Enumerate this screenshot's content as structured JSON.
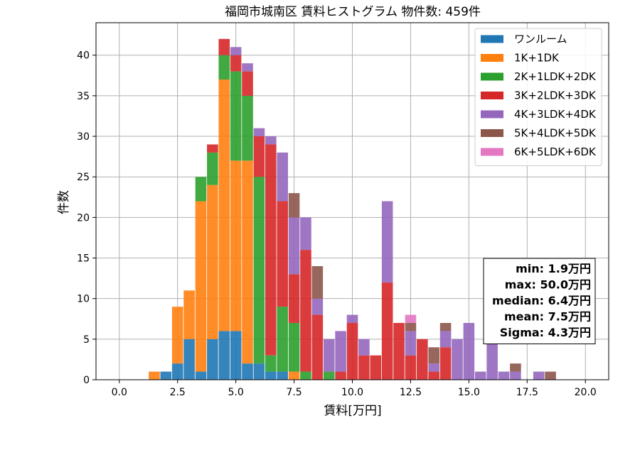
{
  "chart_data": {
    "type": "bar",
    "stacked": true,
    "title": "福岡市城南区 賃料ヒストグラム 物件数: 459件",
    "xlabel": "賃料[万円]",
    "ylabel": "件数",
    "xlim": [
      -1.0,
      21.0
    ],
    "ylim": [
      0,
      44
    ],
    "xticks": [
      0.0,
      2.5,
      5.0,
      7.5,
      10.0,
      12.5,
      15.0,
      17.5,
      20.0
    ],
    "xtick_labels": [
      "0.0",
      "2.5",
      "5.0",
      "7.5",
      "10.0",
      "12.5",
      "15.0",
      "17.5",
      "20.0"
    ],
    "yticks": [
      0,
      5,
      10,
      15,
      20,
      25,
      30,
      35,
      40
    ],
    "ytick_labels": [
      "0",
      "5",
      "10",
      "15",
      "20",
      "25",
      "30",
      "35",
      "40"
    ],
    "grid": true,
    "legend_position": "top-right",
    "bin_width": 0.5,
    "bins": [
      1.5,
      2.0,
      2.5,
      3.0,
      3.5,
      4.0,
      4.5,
      5.0,
      5.5,
      6.0,
      6.5,
      7.0,
      7.5,
      8.0,
      8.5,
      9.0,
      9.5,
      10.0,
      10.5,
      11.0,
      11.5,
      12.0,
      12.5,
      13.0,
      13.5,
      14.0,
      14.5,
      15.0,
      15.5,
      16.0,
      16.5,
      17.0,
      17.5,
      18.0,
      18.5
    ],
    "series": [
      {
        "name": "ワンルーム",
        "color": "#1f77b4",
        "values": [
          0,
          1,
          2,
          5,
          1,
          5,
          6,
          6,
          2,
          2,
          1,
          1,
          0,
          0,
          0,
          0,
          0,
          0,
          0,
          0,
          0,
          0,
          0,
          0,
          0,
          0,
          0,
          0,
          0,
          0,
          0,
          0,
          0,
          0,
          0
        ]
      },
      {
        "name": "1K+1DK",
        "color": "#ff7f0e",
        "values": [
          1,
          0,
          7,
          6,
          21,
          19,
          31,
          21,
          25,
          0,
          0,
          0,
          1,
          0,
          0,
          0,
          0,
          0,
          0,
          0,
          0,
          0,
          0,
          0,
          0,
          0,
          0,
          0,
          0,
          0,
          0,
          0,
          0,
          0,
          0
        ]
      },
      {
        "name": "2K+1LDK+2DK",
        "color": "#2ca02c",
        "values": [
          0,
          0,
          0,
          0,
          3,
          4,
          3,
          11,
          8,
          23,
          2,
          8,
          6,
          1,
          0,
          1,
          0,
          0,
          0,
          0,
          0,
          0,
          0,
          0,
          0,
          0,
          0,
          0,
          0,
          0,
          0,
          0,
          0,
          0,
          0
        ]
      },
      {
        "name": "3K+2LDK+3DK",
        "color": "#d62728",
        "values": [
          0,
          0,
          0,
          0,
          0,
          1,
          2,
          2,
          3,
          5,
          26,
          13,
          6,
          15,
          8,
          0,
          1,
          7,
          3,
          3,
          12,
          7,
          3,
          5,
          1,
          4,
          0,
          0,
          0,
          0,
          0,
          0,
          0,
          0,
          0
        ]
      },
      {
        "name": "4K+3LDK+4DK",
        "color": "#9467bd",
        "values": [
          0,
          0,
          0,
          0,
          0,
          0,
          0,
          1,
          1,
          1,
          1,
          6,
          7,
          4,
          2,
          4,
          5,
          1,
          2,
          0,
          10,
          0,
          3,
          0,
          1,
          2,
          5,
          7,
          1,
          5,
          1,
          1,
          0,
          1,
          0
        ]
      },
      {
        "name": "5K+4LDK+5DK",
        "color": "#8c564b",
        "values": [
          0,
          0,
          0,
          0,
          0,
          0,
          0,
          0,
          0,
          0,
          0,
          0,
          3,
          0,
          4,
          0,
          0,
          0,
          0,
          0,
          0,
          0,
          1,
          0,
          2,
          1,
          0,
          0,
          0,
          0,
          0,
          1,
          0,
          0,
          1
        ]
      },
      {
        "name": "6K+5LDK+6DK",
        "color": "#e377c2",
        "values": [
          0,
          0,
          0,
          0,
          0,
          0,
          0,
          0,
          0,
          0,
          0,
          0,
          0,
          0,
          0,
          0,
          0,
          0,
          0,
          0,
          0,
          0,
          1,
          0,
          0,
          0,
          0,
          0,
          0,
          0,
          0,
          0,
          0,
          0,
          0
        ]
      }
    ],
    "stats_box": {
      "position": "middle-right",
      "lines": [
        "min: 1.9万円",
        "max: 50.0万円",
        "median: 6.4万円",
        "mean: 7.5万円",
        "Sigma: 4.3万円"
      ]
    }
  }
}
